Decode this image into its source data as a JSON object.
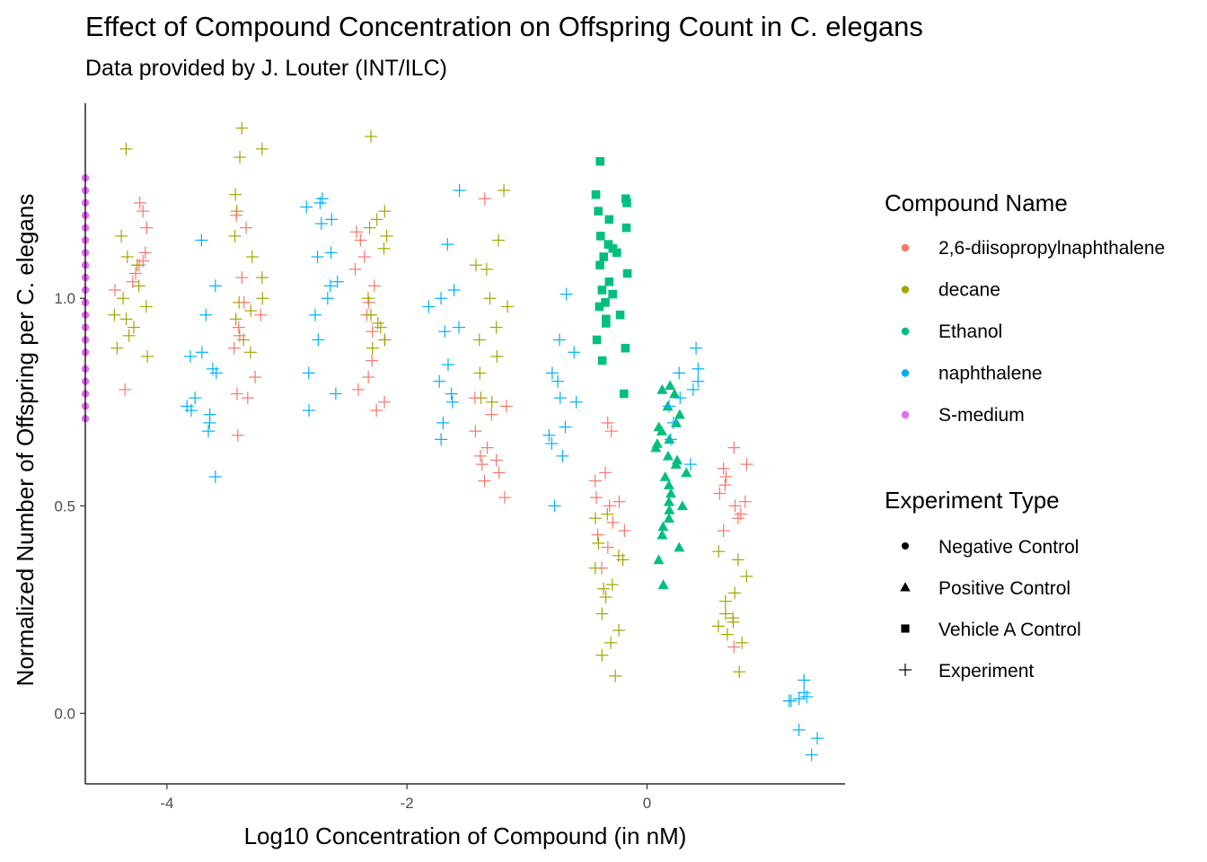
{
  "chart_data": {
    "type": "scatter",
    "title": "Effect of Compound Concentration on Offspring Count in C. elegans",
    "subtitle": "Data provided by J. Louter (INT/ILC)",
    "xlabel": "Log10 Concentration of Compound (in nM)",
    "ylabel": "Normalized Number of Offspring per C. elegans",
    "xlim": [
      -4.68,
      1.65
    ],
    "ylim": [
      -0.17,
      1.47
    ],
    "xticks": [
      -4,
      -2,
      0
    ],
    "yticks": [
      0.0,
      0.5,
      1.0
    ],
    "xtick_labels": [
      "-4",
      "-2",
      "0"
    ],
    "ytick_labels": [
      "0.0",
      "0.5",
      "1.0"
    ],
    "grid": false,
    "legend_position": "right",
    "colors": {
      "2,6-diisopropylnaphthalene": "#F8766D",
      "decane": "#A3A500",
      "Ethanol": "#00BF7D",
      "naphthalene": "#00B0F6",
      "S-medium": "#E76BF3"
    },
    "legend": {
      "color_title": "Compound Name",
      "color_entries": [
        "2,6-diisopropylnaphthalene",
        "decane",
        "Ethanol",
        "naphthalene",
        "S-medium"
      ],
      "shape_title": "Experiment Type",
      "shape_entries": [
        {
          "label": "Negative Control",
          "shape": "circle"
        },
        {
          "label": "Positive Control",
          "shape": "triangle"
        },
        {
          "label": "Vehicle A Control",
          "shape": "square"
        },
        {
          "label": "Experiment",
          "shape": "plus"
        }
      ]
    },
    "series": [
      {
        "compound": "S-medium",
        "type": "Negative Control",
        "shape": "circle",
        "x": -4.68,
        "y": [
          1.29,
          1.26,
          1.23,
          1.2,
          1.17,
          1.14,
          1.11,
          1.08,
          1.05,
          1.02,
          0.99,
          0.96,
          0.93,
          0.9,
          0.87,
          0.83,
          0.8,
          0.77,
          0.74,
          0.71
        ]
      },
      {
        "compound": "Ethanol",
        "type": "Vehicle A Control",
        "shape": "square",
        "x": -0.3,
        "y": [
          1.33,
          1.25,
          1.24,
          1.23,
          1.21,
          1.19,
          1.17,
          1.15,
          1.13,
          1.12,
          1.11,
          1.1,
          1.08,
          1.06,
          1.04,
          1.02,
          1.01,
          0.99,
          0.98,
          0.96,
          0.95,
          0.94,
          0.9,
          0.88,
          0.85,
          0.77
        ]
      },
      {
        "compound": "Ethanol",
        "type": "Positive Control",
        "shape": "triangle",
        "x": 0.2,
        "y": [
          0.79,
          0.78,
          0.77,
          0.74,
          0.72,
          0.7,
          0.69,
          0.68,
          0.66,
          0.65,
          0.64,
          0.62,
          0.61,
          0.6,
          0.58,
          0.57,
          0.55,
          0.53,
          0.51,
          0.5,
          0.49,
          0.47,
          0.45,
          0.43,
          0.4,
          0.37,
          0.31
        ]
      },
      {
        "compound": "2,6-diisopropylnaphthalene",
        "type": "Experiment",
        "shape": "plus",
        "x": -4.3,
        "y": [
          1.23,
          1.21,
          1.17,
          1.11,
          1.09,
          1.08,
          1.06,
          1.04,
          1.02,
          0.78
        ]
      },
      {
        "compound": "decane",
        "type": "Experiment",
        "shape": "plus",
        "x": -4.3,
        "y": [
          1.36,
          1.15,
          1.1,
          1.08,
          1.03,
          1.0,
          0.98,
          0.96,
          0.95,
          0.93,
          0.91,
          0.88,
          0.86
        ]
      },
      {
        "compound": "naphthalene",
        "type": "Experiment",
        "shape": "plus",
        "x": -3.7,
        "y": [
          1.14,
          1.03,
          0.96,
          0.87,
          0.86,
          0.83,
          0.82,
          0.76,
          0.74,
          0.73,
          0.72,
          0.7,
          0.68,
          0.57
        ]
      },
      {
        "compound": "decane",
        "type": "Experiment",
        "shape": "plus",
        "x": -3.3,
        "y": [
          1.41,
          1.36,
          1.34,
          1.25,
          1.21,
          1.15,
          1.1,
          1.05,
          1.0,
          0.99,
          0.97,
          0.95,
          0.9,
          0.87
        ]
      },
      {
        "compound": "2,6-diisopropylnaphthalene",
        "type": "Experiment",
        "shape": "plus",
        "x": -3.3,
        "y": [
          1.2,
          1.17,
          1.05,
          0.99,
          0.96,
          0.93,
          0.91,
          0.88,
          0.81,
          0.77,
          0.76,
          0.67
        ]
      },
      {
        "compound": "naphthalene",
        "type": "Experiment",
        "shape": "plus",
        "x": -2.7,
        "y": [
          1.24,
          1.23,
          1.22,
          1.19,
          1.18,
          1.11,
          1.1,
          1.04,
          1.03,
          1.0,
          0.96,
          0.9,
          0.82,
          0.77,
          0.73
        ]
      },
      {
        "compound": "2,6-diisopropylnaphthalene",
        "type": "Experiment",
        "shape": "plus",
        "x": -2.3,
        "y": [
          1.16,
          1.14,
          1.1,
          1.07,
          1.03,
          0.99,
          0.96,
          0.92,
          0.9,
          0.85,
          0.81,
          0.78,
          0.75,
          0.73
        ]
      },
      {
        "compound": "decane",
        "type": "Experiment",
        "shape": "plus",
        "x": -2.3,
        "y": [
          1.39,
          1.21,
          1.19,
          1.17,
          1.15,
          1.12,
          1.0,
          0.96,
          0.94,
          0.93,
          0.9,
          0.88
        ]
      },
      {
        "compound": "naphthalene",
        "type": "Experiment",
        "shape": "plus",
        "x": -1.7,
        "y": [
          1.26,
          1.13,
          1.02,
          1.0,
          0.98,
          0.93,
          0.92,
          0.84,
          0.8,
          0.77,
          0.75,
          0.7,
          0.66
        ]
      },
      {
        "compound": "decane",
        "type": "Experiment",
        "shape": "plus",
        "x": -1.3,
        "y": [
          1.26,
          1.14,
          1.08,
          1.07,
          1.0,
          0.98,
          0.93,
          0.9,
          0.86,
          0.82,
          0.76,
          0.75
        ]
      },
      {
        "compound": "2,6-diisopropylnaphthalene",
        "type": "Experiment",
        "shape": "plus",
        "x": -1.3,
        "y": [
          1.24,
          0.76,
          0.74,
          0.72,
          0.68,
          0.64,
          0.62,
          0.61,
          0.6,
          0.58,
          0.56,
          0.52
        ]
      },
      {
        "compound": "naphthalene",
        "type": "Experiment",
        "shape": "plus",
        "x": -0.7,
        "y": [
          1.01,
          0.9,
          0.87,
          0.82,
          0.8,
          0.76,
          0.75,
          0.69,
          0.67,
          0.65,
          0.62,
          0.5
        ]
      },
      {
        "compound": "2,6-diisopropylnaphthalene",
        "type": "Experiment",
        "shape": "plus",
        "x": -0.3,
        "y": [
          0.7,
          0.68,
          0.58,
          0.56,
          0.52,
          0.51,
          0.5,
          0.46,
          0.44,
          0.43,
          0.4,
          0.35
        ]
      },
      {
        "compound": "decane",
        "type": "Experiment",
        "shape": "plus",
        "x": -0.3,
        "y": [
          0.48,
          0.47,
          0.41,
          0.38,
          0.37,
          0.35,
          0.31,
          0.3,
          0.28,
          0.24,
          0.2,
          0.17,
          0.14,
          0.09
        ]
      },
      {
        "compound": "naphthalene",
        "type": "Experiment",
        "shape": "plus",
        "x": 0.3,
        "y": [
          0.88,
          0.83,
          0.82,
          0.8,
          0.78,
          0.76,
          0.74,
          0.7,
          0.66,
          0.6
        ]
      },
      {
        "compound": "2,6-diisopropylnaphthalene",
        "type": "Experiment",
        "shape": "plus",
        "x": 0.7,
        "y": [
          0.64,
          0.6,
          0.59,
          0.57,
          0.55,
          0.53,
          0.51,
          0.5,
          0.48,
          0.47,
          0.44,
          0.16
        ]
      },
      {
        "compound": "decane",
        "type": "Experiment",
        "shape": "plus",
        "x": 0.7,
        "y": [
          0.39,
          0.37,
          0.33,
          0.29,
          0.27,
          0.24,
          0.23,
          0.22,
          0.21,
          0.19,
          0.17,
          0.1
        ]
      },
      {
        "compound": "naphthalene",
        "type": "Experiment",
        "shape": "plus",
        "x": 1.3,
        "y": [
          0.08,
          0.05,
          0.04,
          0.035,
          0.03,
          0.03,
          -0.04,
          -0.06,
          -0.1
        ]
      }
    ]
  }
}
